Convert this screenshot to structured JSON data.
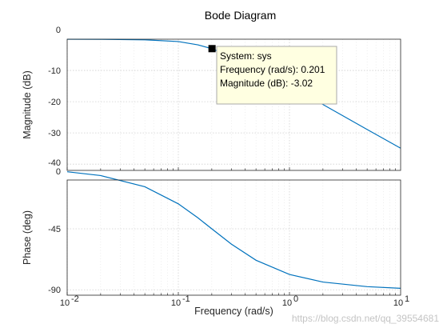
{
  "chart_data": [
    {
      "panel": "magnitude",
      "type": "line",
      "title": "Bode Diagram",
      "ylabel": "Magnitude (dB)",
      "xscale": "log",
      "xlim": [
        0.01,
        10
      ],
      "ylim": [
        -42,
        0
      ],
      "yticks": [
        "0",
        "-10",
        "-20",
        "-30",
        "-40"
      ],
      "grid": true,
      "series": [
        {
          "x": [
            0.01,
            0.02,
            0.05,
            0.1,
            0.15,
            0.2,
            0.3,
            0.5,
            1,
            2,
            5,
            10
          ],
          "y": [
            -0.01,
            -0.03,
            -0.2,
            -0.75,
            -1.8,
            -3.02,
            -5.6,
            -9.5,
            -15.0,
            -20.9,
            -28.9,
            -34.9
          ],
          "color": "#0072bd"
        }
      ],
      "annotations": [
        {
          "type": "datatip",
          "x": 0.201,
          "y": -3.02,
          "lines": [
            "System: sys",
            "Frequency (rad/s): 0.201",
            "Magnitude (dB): -3.02"
          ]
        }
      ]
    },
    {
      "panel": "phase",
      "type": "line",
      "ylabel": "Phase (deg)",
      "xlabel": "Frequency  (rad/s)",
      "xscale": "log",
      "xlim": [
        0.01,
        10
      ],
      "ylim": [
        -95,
        -10
      ],
      "yticks": [
        "0",
        "-45",
        "-90"
      ],
      "xticks": [
        {
          "base": "10",
          "exp": "-2"
        },
        {
          "base": "10",
          "exp": "-1"
        },
        {
          "base": "10",
          "exp": "0"
        },
        {
          "base": "10",
          "exp": "1"
        }
      ],
      "grid": true,
      "series": [
        {
          "x": [
            0.01,
            0.02,
            0.05,
            0.1,
            0.15,
            0.2,
            0.3,
            0.5,
            1,
            2,
            5,
            10
          ],
          "y": [
            -2.9,
            -5.7,
            -14.0,
            -26.6,
            -36.9,
            -45.0,
            -56.3,
            -68.2,
            -78.7,
            -84.3,
            -87.7,
            -88.9
          ],
          "color": "#0072bd"
        }
      ]
    }
  ],
  "watermark": "https://blog.csdn.net/qq_39554681"
}
